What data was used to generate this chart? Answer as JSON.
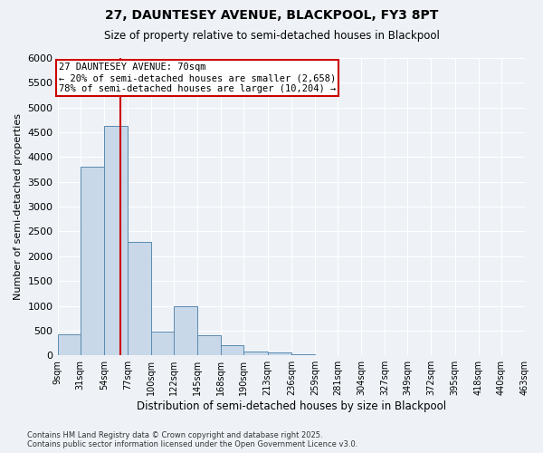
{
  "title1": "27, DAUNTESEY AVENUE, BLACKPOOL, FY3 8PT",
  "title2": "Size of property relative to semi-detached houses in Blackpool",
  "xlabel": "Distribution of semi-detached houses by size in Blackpool",
  "ylabel": "Number of semi-detached properties",
  "annotation_title": "27 DAUNTESEY AVENUE: 70sqm",
  "annotation_line1": "← 20% of semi-detached houses are smaller (2,658)",
  "annotation_line2": "78% of semi-detached houses are larger (10,204) →",
  "footer1": "Contains HM Land Registry data © Crown copyright and database right 2025.",
  "footer2": "Contains public sector information licensed under the Open Government Licence v3.0.",
  "bar_color": "#c8d8e8",
  "bar_edge_color": "#5a8ab0",
  "vline_color": "#cc0000",
  "annotation_box_color": "#cc0000",
  "background_color": "#eef2f7",
  "bins": [
    9,
    31,
    54,
    77,
    100,
    122,
    145,
    168,
    190,
    213,
    236,
    259,
    281,
    304,
    327,
    349,
    372,
    395,
    418,
    440,
    463
  ],
  "bin_labels": [
    "9sqm",
    "31sqm",
    "54sqm",
    "77sqm",
    "100sqm",
    "122sqm",
    "145sqm",
    "168sqm",
    "190sqm",
    "213sqm",
    "236sqm",
    "259sqm",
    "281sqm",
    "304sqm",
    "327sqm",
    "349sqm",
    "372sqm",
    "395sqm",
    "418sqm",
    "440sqm",
    "463sqm"
  ],
  "counts": [
    430,
    3800,
    4620,
    2280,
    480,
    1000,
    400,
    200,
    80,
    50,
    30,
    10,
    5,
    3,
    2,
    1,
    1,
    1,
    0,
    0
  ],
  "property_size": 70,
  "ylim": [
    0,
    6000
  ],
  "yticks": [
    0,
    500,
    1000,
    1500,
    2000,
    2500,
    3000,
    3500,
    4000,
    4500,
    5000,
    5500,
    6000
  ]
}
